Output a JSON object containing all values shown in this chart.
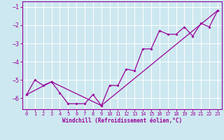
{
  "xlabel": "Windchill (Refroidissement éolien,°C)",
  "background_color": "#cde8f0",
  "line_color": "#990099",
  "grid_color": "#ffffff",
  "xlim": [
    -0.5,
    23.5
  ],
  "ylim": [
    -6.6,
    -0.7
  ],
  "yticks": [
    -6,
    -5,
    -4,
    -3,
    -2,
    -1
  ],
  "xticks": [
    0,
    1,
    2,
    3,
    4,
    5,
    6,
    7,
    8,
    9,
    10,
    11,
    12,
    13,
    14,
    15,
    16,
    17,
    18,
    19,
    20,
    21,
    22,
    23
  ],
  "series1_x": [
    0,
    1,
    2,
    3,
    4,
    5,
    6,
    7,
    8,
    9,
    10,
    11,
    12,
    13,
    14,
    15,
    16,
    17,
    18,
    19,
    20,
    21,
    22,
    23
  ],
  "series1_y": [
    -5.8,
    -5.0,
    -5.3,
    -5.1,
    -5.7,
    -6.3,
    -6.3,
    -6.3,
    -5.8,
    -6.4,
    -5.3,
    -5.3,
    -4.4,
    -4.5,
    -3.3,
    -3.3,
    -2.3,
    -2.5,
    -2.5,
    -2.1,
    -2.6,
    -1.9,
    -2.1,
    -1.2
  ],
  "series2_x": [
    0,
    3,
    9,
    23
  ],
  "series2_y": [
    -5.8,
    -5.1,
    -6.4,
    -1.2
  ]
}
